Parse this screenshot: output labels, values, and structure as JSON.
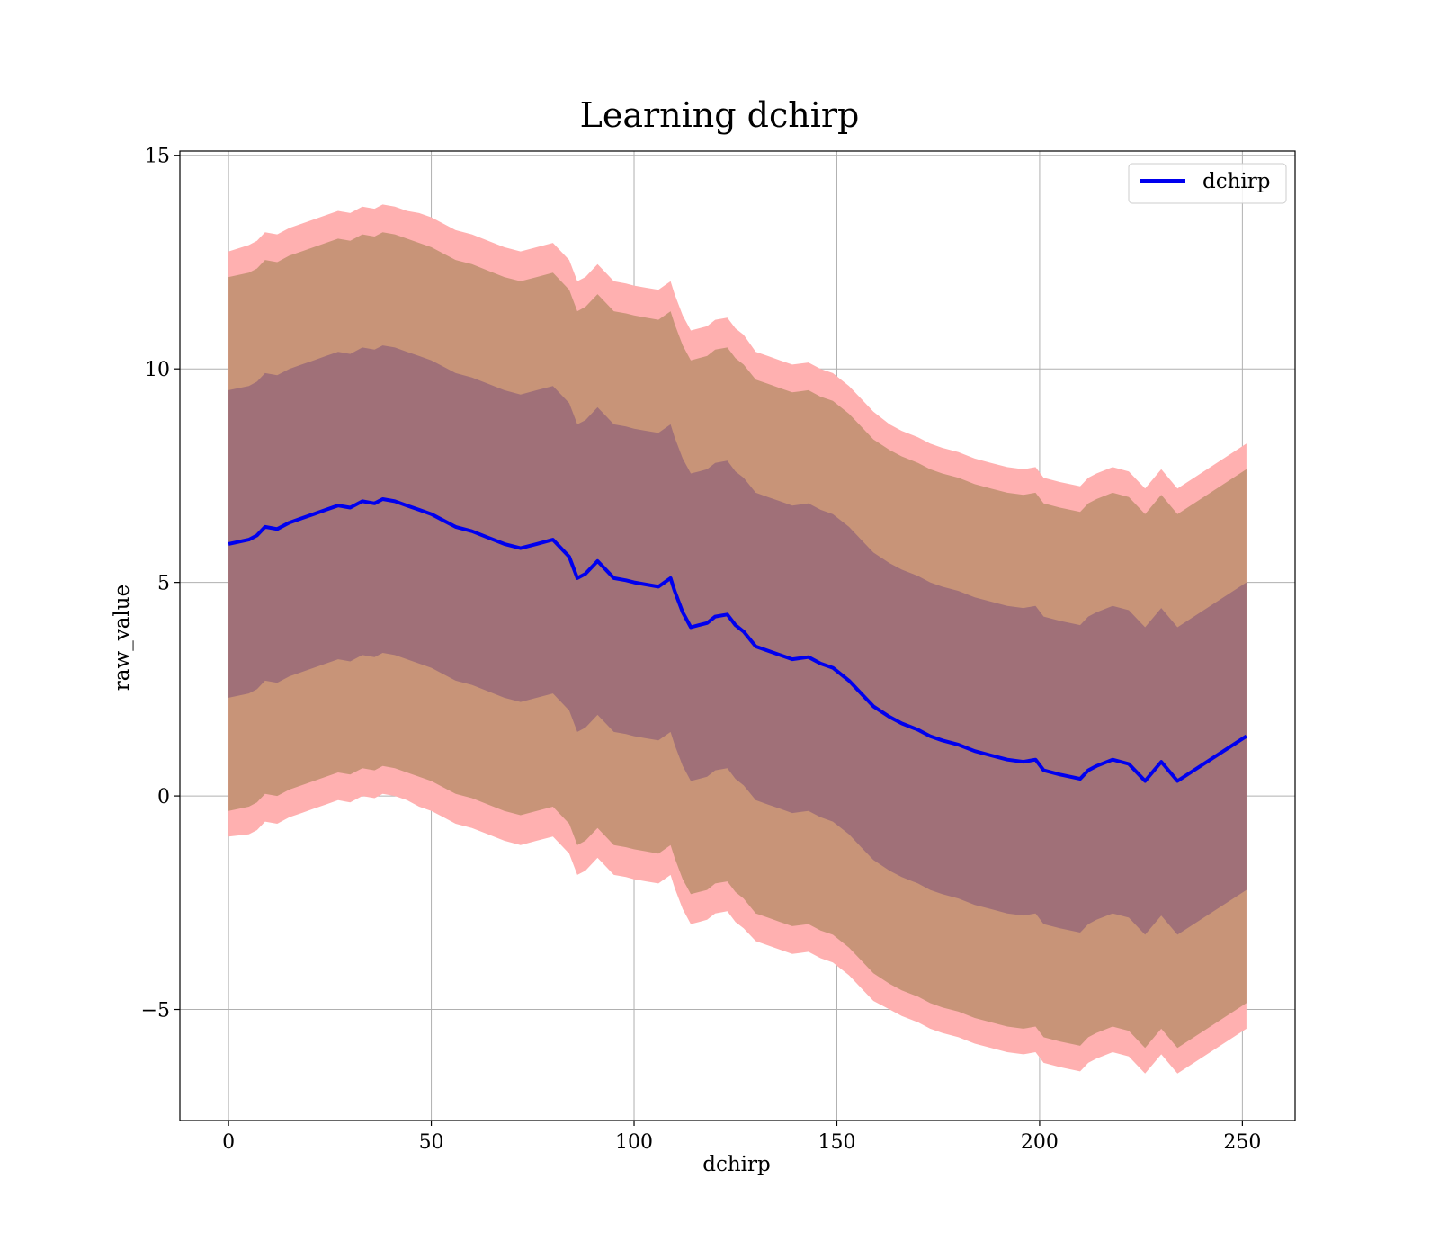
{
  "chart_data": {
    "type": "area",
    "title": "Learning dchirp",
    "xlabel": "dchirp",
    "ylabel": "raw_value",
    "xlim": [
      -12,
      263
    ],
    "ylim": [
      -7.6,
      15.1
    ],
    "xticks": [
      0,
      50,
      100,
      150,
      200,
      250
    ],
    "yticks": [
      -5,
      0,
      5,
      10,
      15
    ],
    "xtick_labels": [
      "0",
      "50",
      "100",
      "150",
      "200",
      "250"
    ],
    "ytick_labels": [
      "−5",
      "0",
      "5",
      "10",
      "15"
    ],
    "grid": true,
    "legend_position": "top-right",
    "colors": {
      "line": "#0000ee",
      "band_outer": "#ffb0b0",
      "band_middle": "#c89478",
      "band_inner": "#a07078",
      "grid": "#b0b0b0"
    },
    "x": [
      0,
      5,
      7,
      9,
      12,
      15,
      18,
      21,
      24,
      27,
      30,
      33,
      36,
      38,
      41,
      44,
      47,
      50,
      53,
      56,
      60,
      64,
      68,
      72,
      76,
      80,
      84,
      86,
      88,
      91,
      93,
      95,
      98,
      100,
      103,
      106,
      109,
      110,
      112,
      114,
      116,
      118,
      120,
      123,
      125,
      127,
      130,
      133,
      136,
      139,
      143,
      146,
      149,
      153,
      156,
      159,
      163,
      166,
      170,
      173,
      176,
      180,
      184,
      188,
      192,
      196,
      199,
      201,
      205,
      210,
      212,
      214,
      218,
      222,
      226,
      230,
      234,
      251
    ],
    "series": [
      {
        "name": "dchirp",
        "values": [
          5.9,
          6.0,
          6.1,
          6.3,
          6.25,
          6.4,
          6.5,
          6.6,
          6.7,
          6.8,
          6.75,
          6.9,
          6.85,
          6.95,
          6.9,
          6.8,
          6.7,
          6.6,
          6.45,
          6.3,
          6.2,
          6.05,
          5.9,
          5.8,
          5.9,
          6.0,
          5.6,
          5.1,
          5.2,
          5.5,
          5.3,
          5.1,
          5.05,
          5.0,
          4.95,
          4.9,
          5.1,
          4.8,
          4.3,
          3.95,
          4.0,
          4.05,
          4.2,
          4.25,
          4.0,
          3.85,
          3.5,
          3.4,
          3.3,
          3.2,
          3.25,
          3.1,
          3.0,
          2.7,
          2.4,
          2.1,
          1.85,
          1.7,
          1.55,
          1.4,
          1.3,
          1.2,
          1.05,
          0.95,
          0.85,
          0.8,
          0.85,
          0.6,
          0.5,
          0.4,
          0.6,
          0.7,
          0.85,
          0.75,
          0.35,
          0.8,
          0.35,
          1.4
        ]
      }
    ],
    "bands": [
      {
        "level": "outer",
        "half_width": [
          6.85,
          6.9,
          6.9,
          6.9,
          6.9,
          6.9,
          6.9,
          6.9,
          6.9,
          6.9,
          6.9,
          6.9,
          6.9,
          6.9,
          6.9,
          6.9,
          6.95,
          6.95,
          6.95,
          6.95,
          6.95,
          6.95,
          6.95,
          6.95,
          6.95,
          6.95,
          6.95,
          6.95,
          6.95,
          6.95,
          6.95,
          6.95,
          6.95,
          6.95,
          6.95,
          6.95,
          6.95,
          6.95,
          6.95,
          6.95,
          6.95,
          6.95,
          6.95,
          6.95,
          6.95,
          6.95,
          6.9,
          6.9,
          6.9,
          6.9,
          6.9,
          6.9,
          6.9,
          6.9,
          6.9,
          6.9,
          6.85,
          6.85,
          6.85,
          6.85,
          6.85,
          6.85,
          6.85,
          6.85,
          6.85,
          6.85,
          6.85,
          6.85,
          6.85,
          6.85,
          6.85,
          6.85,
          6.85,
          6.85,
          6.85,
          6.85,
          6.85,
          6.85
        ]
      },
      {
        "level": "middle",
        "half_width": [
          6.25,
          6.25,
          6.25,
          6.25,
          6.25,
          6.25,
          6.25,
          6.25,
          6.25,
          6.25,
          6.25,
          6.25,
          6.25,
          6.25,
          6.25,
          6.25,
          6.25,
          6.25,
          6.25,
          6.25,
          6.25,
          6.25,
          6.25,
          6.25,
          6.25,
          6.25,
          6.25,
          6.25,
          6.25,
          6.25,
          6.25,
          6.25,
          6.25,
          6.25,
          6.25,
          6.25,
          6.25,
          6.25,
          6.25,
          6.25,
          6.25,
          6.25,
          6.25,
          6.25,
          6.25,
          6.25,
          6.25,
          6.25,
          6.25,
          6.25,
          6.25,
          6.25,
          6.25,
          6.25,
          6.25,
          6.25,
          6.25,
          6.25,
          6.25,
          6.25,
          6.25,
          6.25,
          6.25,
          6.25,
          6.25,
          6.25,
          6.25,
          6.25,
          6.25,
          6.25,
          6.25,
          6.25,
          6.25,
          6.25,
          6.25,
          6.25,
          6.25,
          6.25
        ]
      },
      {
        "level": "inner",
        "half_width": [
          3.6,
          3.6,
          3.6,
          3.6,
          3.6,
          3.6,
          3.6,
          3.6,
          3.6,
          3.6,
          3.6,
          3.6,
          3.6,
          3.6,
          3.6,
          3.6,
          3.6,
          3.6,
          3.6,
          3.6,
          3.6,
          3.6,
          3.6,
          3.6,
          3.6,
          3.6,
          3.6,
          3.6,
          3.6,
          3.6,
          3.6,
          3.6,
          3.6,
          3.6,
          3.6,
          3.6,
          3.6,
          3.6,
          3.6,
          3.6,
          3.6,
          3.6,
          3.6,
          3.6,
          3.6,
          3.6,
          3.6,
          3.6,
          3.6,
          3.6,
          3.6,
          3.6,
          3.6,
          3.6,
          3.6,
          3.6,
          3.6,
          3.6,
          3.6,
          3.6,
          3.6,
          3.6,
          3.6,
          3.6,
          3.6,
          3.6,
          3.6,
          3.6,
          3.6,
          3.6,
          3.6,
          3.6,
          3.6,
          3.6,
          3.6,
          3.6,
          3.6,
          3.6
        ]
      }
    ]
  }
}
